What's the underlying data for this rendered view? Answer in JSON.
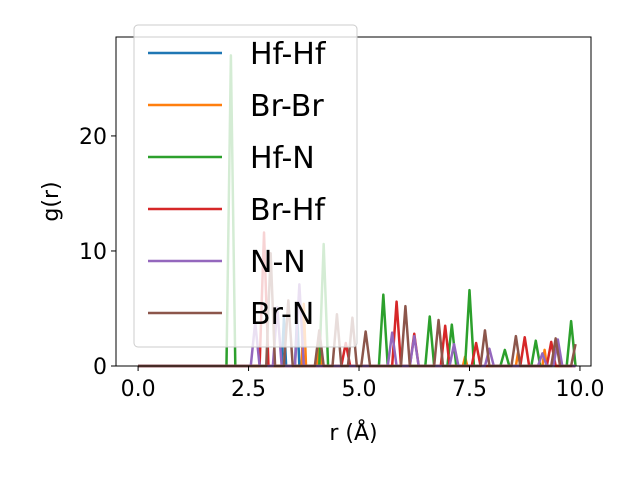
{
  "chart_data": {
    "type": "line",
    "title": "",
    "xlabel": "r (Å)",
    "ylabel": "g(r)",
    "xlim": [
      -0.5,
      10.25
    ],
    "ylim": [
      0,
      28.6
    ],
    "xticks": [
      0.0,
      2.5,
      5.0,
      7.5,
      10.0
    ],
    "xtick_labels": [
      "0.0",
      "2.5",
      "5.0",
      "7.5",
      "10.0"
    ],
    "yticks": [
      0,
      10,
      20
    ],
    "ytick_labels": [
      "0",
      "10",
      "20"
    ],
    "grid": false,
    "legend_position": "top-left",
    "series": [
      {
        "name": "Hf-Hf",
        "color": "#1f77b4",
        "points": [
          [
            0,
            0
          ],
          [
            3.25,
            0
          ],
          [
            3.3,
            4.2
          ],
          [
            3.35,
            0
          ],
          [
            3.55,
            0
          ],
          [
            3.6,
            4.6
          ],
          [
            3.65,
            0
          ],
          [
            9.9,
            0
          ]
        ]
      },
      {
        "name": "Br-Br",
        "color": "#ff7f0e",
        "points": [
          [
            0,
            0
          ],
          [
            3.7,
            0
          ],
          [
            3.75,
            5.4
          ],
          [
            3.8,
            0
          ],
          [
            4.05,
            0
          ],
          [
            4.1,
            2.5
          ],
          [
            4.15,
            0
          ],
          [
            7.35,
            0
          ],
          [
            7.4,
            0.8
          ],
          [
            7.45,
            0
          ],
          [
            8.55,
            0
          ],
          [
            8.6,
            1.2
          ],
          [
            8.65,
            0
          ],
          [
            9.15,
            0
          ],
          [
            9.2,
            1.4
          ],
          [
            9.25,
            0
          ],
          [
            9.9,
            0
          ]
        ]
      },
      {
        "name": "Hf-N",
        "color": "#2ca02c",
        "points": [
          [
            0,
            0
          ],
          [
            2.0,
            0
          ],
          [
            2.1,
            27.0
          ],
          [
            2.2,
            0
          ],
          [
            4.1,
            0
          ],
          [
            4.2,
            10.6
          ],
          [
            4.3,
            0
          ],
          [
            5.45,
            0
          ],
          [
            5.55,
            6.2
          ],
          [
            5.65,
            0
          ],
          [
            6.5,
            0
          ],
          [
            6.6,
            4.3
          ],
          [
            6.7,
            0
          ],
          [
            7.0,
            0
          ],
          [
            7.1,
            3.6
          ],
          [
            7.2,
            0
          ],
          [
            7.4,
            0
          ],
          [
            7.5,
            6.6
          ],
          [
            7.6,
            0
          ],
          [
            8.2,
            0
          ],
          [
            8.3,
            1.4
          ],
          [
            8.4,
            0
          ],
          [
            8.9,
            0
          ],
          [
            9.0,
            2.2
          ],
          [
            9.1,
            0
          ],
          [
            9.7,
            0
          ],
          [
            9.8,
            3.9
          ],
          [
            9.9,
            0
          ]
        ]
      },
      {
        "name": "Br-Hf",
        "color": "#d62728",
        "points": [
          [
            0,
            0
          ],
          [
            2.75,
            0
          ],
          [
            2.85,
            11.6
          ],
          [
            2.95,
            0
          ],
          [
            4.6,
            0
          ],
          [
            4.7,
            2.0
          ],
          [
            4.8,
            0
          ],
          [
            5.75,
            0
          ],
          [
            5.85,
            5.6
          ],
          [
            5.95,
            0
          ],
          [
            6.15,
            0
          ],
          [
            6.25,
            2.8
          ],
          [
            6.35,
            0
          ],
          [
            6.85,
            0
          ],
          [
            6.95,
            3.5
          ],
          [
            7.05,
            0
          ],
          [
            7.55,
            0
          ],
          [
            7.65,
            2.0
          ],
          [
            7.75,
            0
          ],
          [
            8.65,
            0
          ],
          [
            8.75,
            2.5
          ],
          [
            8.85,
            0
          ],
          [
            9.25,
            0
          ],
          [
            9.35,
            2.1
          ],
          [
            9.45,
            0
          ],
          [
            9.9,
            0
          ]
        ]
      },
      {
        "name": "N-N",
        "color": "#9467bd",
        "points": [
          [
            0,
            0
          ],
          [
            2.55,
            0
          ],
          [
            2.65,
            3.8
          ],
          [
            2.75,
            0
          ],
          [
            3.05,
            0
          ],
          [
            3.15,
            5.1
          ],
          [
            3.25,
            0
          ],
          [
            3.55,
            0
          ],
          [
            3.65,
            7.1
          ],
          [
            3.75,
            0
          ],
          [
            5.65,
            0
          ],
          [
            5.75,
            2.9
          ],
          [
            5.85,
            0
          ],
          [
            6.15,
            0
          ],
          [
            6.25,
            2.6
          ],
          [
            6.35,
            0
          ],
          [
            7.05,
            0
          ],
          [
            7.15,
            1.9
          ],
          [
            7.25,
            0
          ],
          [
            7.85,
            0
          ],
          [
            7.95,
            1.5
          ],
          [
            8.05,
            0
          ],
          [
            9.05,
            0
          ],
          [
            9.15,
            1.1
          ],
          [
            9.25,
            0
          ],
          [
            9.4,
            0
          ],
          [
            9.5,
            2.3
          ],
          [
            9.6,
            0
          ],
          [
            9.9,
            0
          ]
        ]
      },
      {
        "name": "Br-N",
        "color": "#8c564b",
        "points": [
          [
            0,
            0
          ],
          [
            2.9,
            0
          ],
          [
            3.0,
            9.8
          ],
          [
            3.1,
            0
          ],
          [
            3.3,
            0
          ],
          [
            3.4,
            5.7
          ],
          [
            3.5,
            0
          ],
          [
            4.0,
            0
          ],
          [
            4.1,
            3.1
          ],
          [
            4.2,
            0
          ],
          [
            4.4,
            0
          ],
          [
            4.5,
            4.5
          ],
          [
            4.6,
            0
          ],
          [
            4.75,
            0
          ],
          [
            4.85,
            4.2
          ],
          [
            4.95,
            0
          ],
          [
            5.05,
            0
          ],
          [
            5.15,
            3.0
          ],
          [
            5.25,
            0
          ],
          [
            5.95,
            0
          ],
          [
            6.05,
            5.2
          ],
          [
            6.15,
            0
          ],
          [
            6.7,
            0
          ],
          [
            6.8,
            4.0
          ],
          [
            6.9,
            0
          ],
          [
            7.75,
            0
          ],
          [
            7.85,
            3.1
          ],
          [
            7.95,
            0
          ],
          [
            8.45,
            0
          ],
          [
            8.55,
            2.6
          ],
          [
            8.65,
            0
          ],
          [
            9.35,
            0
          ],
          [
            9.45,
            2.4
          ],
          [
            9.55,
            0
          ],
          [
            9.8,
            0
          ],
          [
            9.9,
            1.9
          ]
        ]
      }
    ]
  }
}
